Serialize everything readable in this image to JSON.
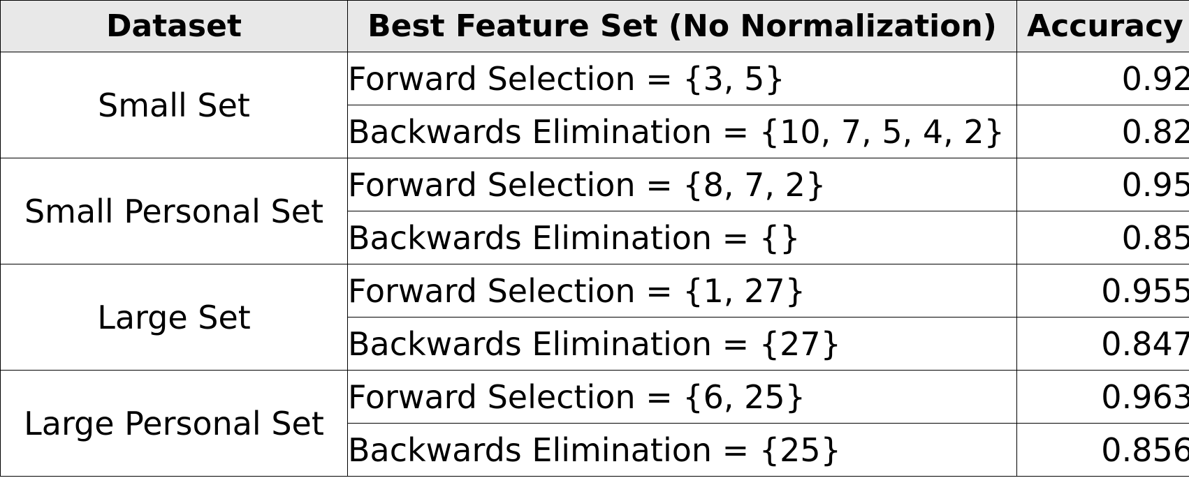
{
  "table": {
    "headers": {
      "dataset": "Dataset",
      "feature_set": "Best Feature Set (No Normalization)",
      "accuracy": "Accuracy"
    },
    "groups": [
      {
        "dataset": "Small Set",
        "rows": [
          {
            "feature_set": "Forward Selection = {3, 5}",
            "accuracy": "0.92"
          },
          {
            "feature_set": "Backwards Elimination = {10, 7, 5, 4, 2}",
            "accuracy": "0.82"
          }
        ]
      },
      {
        "dataset": "Small Personal Set",
        "rows": [
          {
            "feature_set": "Forward Selection = {8, 7, 2}",
            "accuracy": "0.95"
          },
          {
            "feature_set": "Backwards Elimination = {}",
            "accuracy": "0.85"
          }
        ]
      },
      {
        "dataset": "Large Set",
        "rows": [
          {
            "feature_set": "Forward Selection = {1, 27}",
            "accuracy": "0.955"
          },
          {
            "feature_set": "Backwards Elimination = {27}",
            "accuracy": "0.847"
          }
        ]
      },
      {
        "dataset": "Large Personal Set",
        "rows": [
          {
            "feature_set": "Forward Selection = {6, 25}",
            "accuracy": "0.963"
          },
          {
            "feature_set": "Backwards Elimination = {25}",
            "accuracy": "0.856"
          }
        ]
      }
    ]
  }
}
